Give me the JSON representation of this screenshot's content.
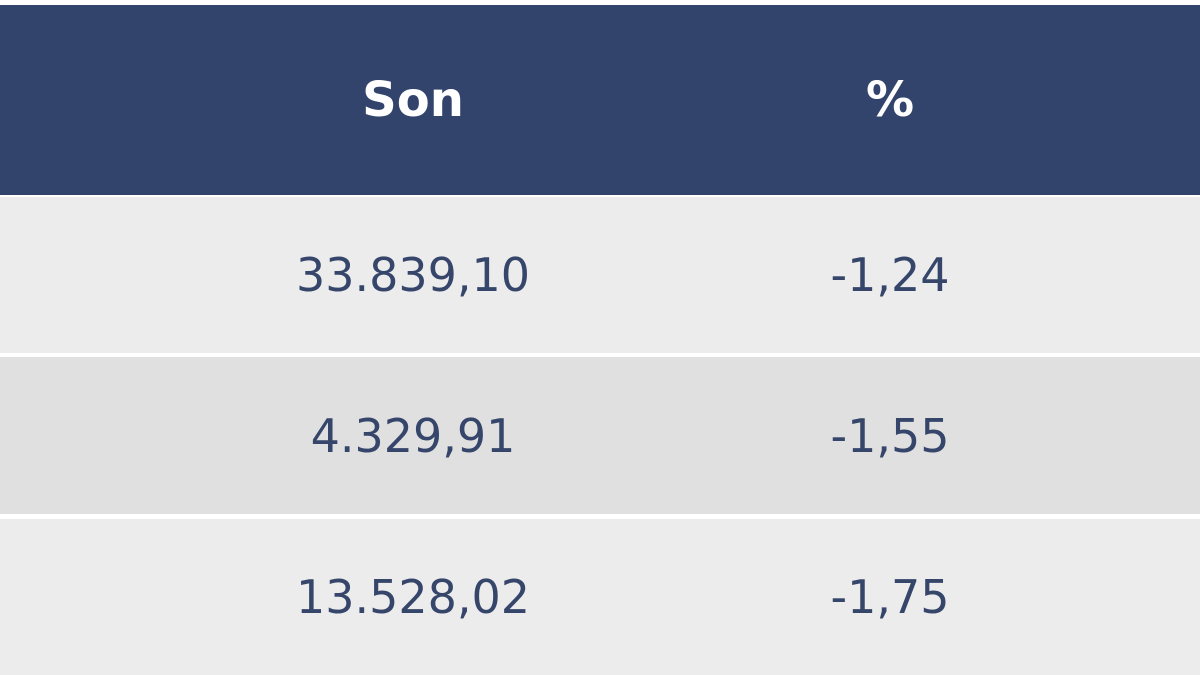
{
  "table": {
    "columns": [
      "Son",
      "%"
    ],
    "rows": [
      [
        "33.839,10",
        "-1,24"
      ],
      [
        "4.329,91",
        "-1,55"
      ],
      [
        "13.528,02",
        "-1,75"
      ]
    ]
  }
}
